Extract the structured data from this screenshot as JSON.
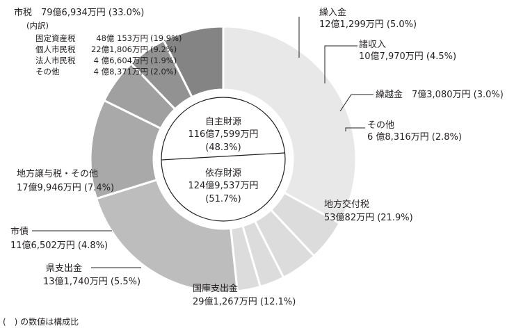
{
  "chart_data": {
    "type": "pie",
    "colors": {
      "tax": "#e8e8e8",
      "light": "#dcdcdc",
      "koufu": "#bdbdbd",
      "kokko": "#a9a9a9",
      "kenshi": "#a0a0a0",
      "shisai": "#929292",
      "jouyo": "#848484",
      "center_fill": "#ffffff",
      "stroke": "#ffffff"
    },
    "slices": [
      {
        "label": "市税",
        "amount": "79億6,934万円",
        "percent": 33.0,
        "pct_text": "(33.0%)",
        "color_key": "tax"
      },
      {
        "label": "繰入金",
        "amount": "12億1,299万円",
        "percent": 5.0,
        "pct_text": "(5.0%)",
        "color_key": "light"
      },
      {
        "label": "諸収入",
        "amount": "10億7,970万円",
        "percent": 4.5,
        "pct_text": "(4.5%)",
        "color_key": "light"
      },
      {
        "label": "繰越金",
        "amount": "7億3,080万円",
        "percent": 3.0,
        "pct_text": "(3.0%)",
        "color_key": "light"
      },
      {
        "label": "その他",
        "amount": "6 億8,316万円",
        "percent": 2.8,
        "pct_text": "(2.8%)",
        "color_key": "light"
      },
      {
        "label": "地方交付税",
        "amount": "53億82万円",
        "percent": 21.9,
        "pct_text": "(21.9%)",
        "color_key": "koufu"
      },
      {
        "label": "国庫支出金",
        "amount": "29億1,267万円",
        "percent": 12.1,
        "pct_text": "(12.1%)",
        "color_key": "kokko"
      },
      {
        "label": "県支出金",
        "amount": "13億1,740万円",
        "percent": 5.5,
        "pct_text": "(5.5%)",
        "color_key": "kenshi"
      },
      {
        "label": "市債",
        "amount": "11億6,502万円",
        "percent": 4.8,
        "pct_text": "(4.8%)",
        "color_key": "shisai"
      },
      {
        "label": "地方譲与税・その他",
        "amount": "17億9,946万円",
        "percent": 7.4,
        "pct_text": "(7.4%)",
        "color_key": "jouyo"
      }
    ],
    "tax_breakdown": {
      "heading": "(内訳)",
      "items": [
        {
          "label": "固定資産税",
          "amount": "48億 153万円",
          "pct_text": "(19.9%)"
        },
        {
          "label": "個人市民税",
          "amount": "22億1,806万円",
          "pct_text": "(9.2%)"
        },
        {
          "label": "法人市民税",
          "amount": "4 億6,604万円",
          "pct_text": "(1.9%)"
        },
        {
          "label": "その他",
          "amount": "4 億8,371万円",
          "pct_text": "(2.0%)"
        }
      ]
    },
    "center": {
      "own_source": {
        "label": "自主財源",
        "amount": "116億7,599万円",
        "pct_text": "(48.3%)",
        "percent": 48.3
      },
      "dependent": {
        "label": "依存財源",
        "amount": "124億9,537万円",
        "pct_text": "(51.7%)",
        "percent": 51.7
      }
    }
  },
  "footnote": "(　) の数値は構成比"
}
